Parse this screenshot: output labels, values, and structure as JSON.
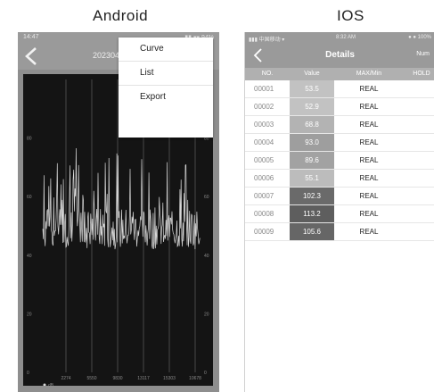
{
  "labels": {
    "android": "Android",
    "ios": "IOS"
  },
  "android": {
    "status_time": "14:47",
    "status_icons": "▮▮ ▾▾ 94%",
    "title": "20230421 - 01",
    "menu": [
      "Curve",
      "List",
      "Export"
    ],
    "colors": {
      "chart_bg": "#141414",
      "trace": "#d8d8d8",
      "grid": "#7a7a7a",
      "text": "#8a8a8a"
    }
  },
  "ios": {
    "status_carrier": "▮▮▮ 中国移动 ▾",
    "status_time": "8:32 AM",
    "status_icons": "● ● 100%",
    "title": "Details",
    "right_action": "Num",
    "columns": {
      "no": "NO.",
      "value": "Value",
      "maxmin": "MAX/Min",
      "hold": "HOLD"
    },
    "rows": [
      {
        "no": "00001",
        "value": "53.5",
        "maxmin": "REAL",
        "shade": "#c2c2c2"
      },
      {
        "no": "00002",
        "value": "52.9",
        "maxmin": "REAL",
        "shade": "#c2c2c2"
      },
      {
        "no": "00003",
        "value": "68.8",
        "maxmin": "REAL",
        "shade": "#b3b3b3"
      },
      {
        "no": "00004",
        "value": "93.0",
        "maxmin": "REAL",
        "shade": "#9e9e9e"
      },
      {
        "no": "00005",
        "value": "89.6",
        "maxmin": "REAL",
        "shade": "#a2a2a2"
      },
      {
        "no": "00006",
        "value": "55.1",
        "maxmin": "REAL",
        "shade": "#bcbcbc"
      },
      {
        "no": "00007",
        "value": "102.3",
        "maxmin": "REAL",
        "shade": "#6a6a6a"
      },
      {
        "no": "00008",
        "value": "113.2",
        "maxmin": "REAL",
        "shade": "#5e5e5e"
      },
      {
        "no": "00009",
        "value": "105.6",
        "maxmin": "REAL",
        "shade": "#666666"
      }
    ]
  },
  "chart_data": {
    "type": "line",
    "yticks_left": [
      "0",
      "20",
      "40",
      "60",
      "80"
    ],
    "yticks_right": [
      "0",
      "20",
      "40",
      "60",
      "80"
    ],
    "xticks": [
      "2274",
      "5550",
      "9830",
      "13117",
      "15303",
      "10678"
    ],
    "legend": "dB",
    "ylim": [
      0,
      100
    ],
    "band_min": 42,
    "band_max": 68
  }
}
